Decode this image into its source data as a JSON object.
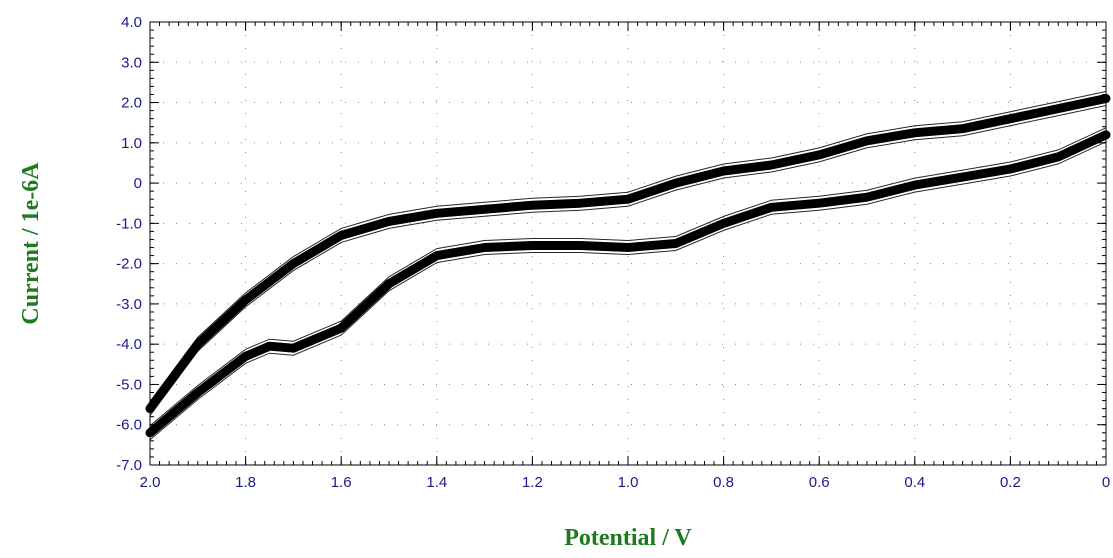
{
  "chart_data": {
    "type": "line",
    "title": "",
    "xlabel": "Potential / V",
    "ylabel": "Current / 1e-6A",
    "xlim": [
      2.0,
      0.0
    ],
    "ylim": [
      -7.0,
      4.0
    ],
    "x_reversed": true,
    "grid": true,
    "x_ticks": [
      2.0,
      1.8,
      1.6,
      1.4,
      1.2,
      1.0,
      0.8,
      0.6,
      0.4,
      0.2,
      0.0
    ],
    "x_tick_labels": [
      "2.0",
      "1.8",
      "1.6",
      "1.4",
      "1.2",
      "1.0",
      "0.8",
      "0.6",
      "0.4",
      "0.2",
      "0"
    ],
    "y_ticks": [
      4.0,
      3.0,
      2.0,
      1.0,
      0.0,
      -1.0,
      -2.0,
      -3.0,
      -4.0,
      -5.0,
      -6.0,
      -7.0
    ],
    "y_tick_labels": [
      "4.0",
      "3.0",
      "2.0",
      "1.0",
      "0",
      "-1.0",
      "-2.0",
      "-3.0",
      "-4.0",
      "-5.0",
      "-6.0",
      "-7.0"
    ],
    "line_color": "#000000",
    "series": [
      {
        "x": [
          0.0,
          0.1,
          0.2,
          0.3,
          0.4,
          0.5,
          0.6,
          0.7,
          0.8,
          0.9,
          1.0,
          1.1,
          1.2,
          1.3,
          1.4,
          1.5,
          1.6,
          1.7,
          1.8,
          1.9,
          2.0
        ],
        "y": [
          2.1,
          1.85,
          1.6,
          1.35,
          1.25,
          1.05,
          0.7,
          0.45,
          0.3,
          0.0,
          -0.4,
          -0.5,
          -0.55,
          -0.65,
          -0.75,
          -0.95,
          -1.3,
          -2.0,
          -2.9,
          -4.0,
          -5.6
        ]
      },
      {
        "x": [
          2.0,
          1.9,
          1.8,
          1.75,
          1.7,
          1.6,
          1.5,
          1.4,
          1.3,
          1.2,
          1.1,
          1.0,
          0.9,
          0.8,
          0.7,
          0.6,
          0.5,
          0.4,
          0.3,
          0.2,
          0.1,
          0.0
        ],
        "y": [
          -6.2,
          -5.2,
          -4.3,
          -4.05,
          -4.1,
          -3.6,
          -2.5,
          -1.8,
          -1.6,
          -1.55,
          -1.55,
          -1.6,
          -1.5,
          -1.0,
          -0.6,
          -0.5,
          -0.35,
          -0.05,
          0.15,
          0.35,
          0.65,
          1.2
        ]
      }
    ]
  }
}
